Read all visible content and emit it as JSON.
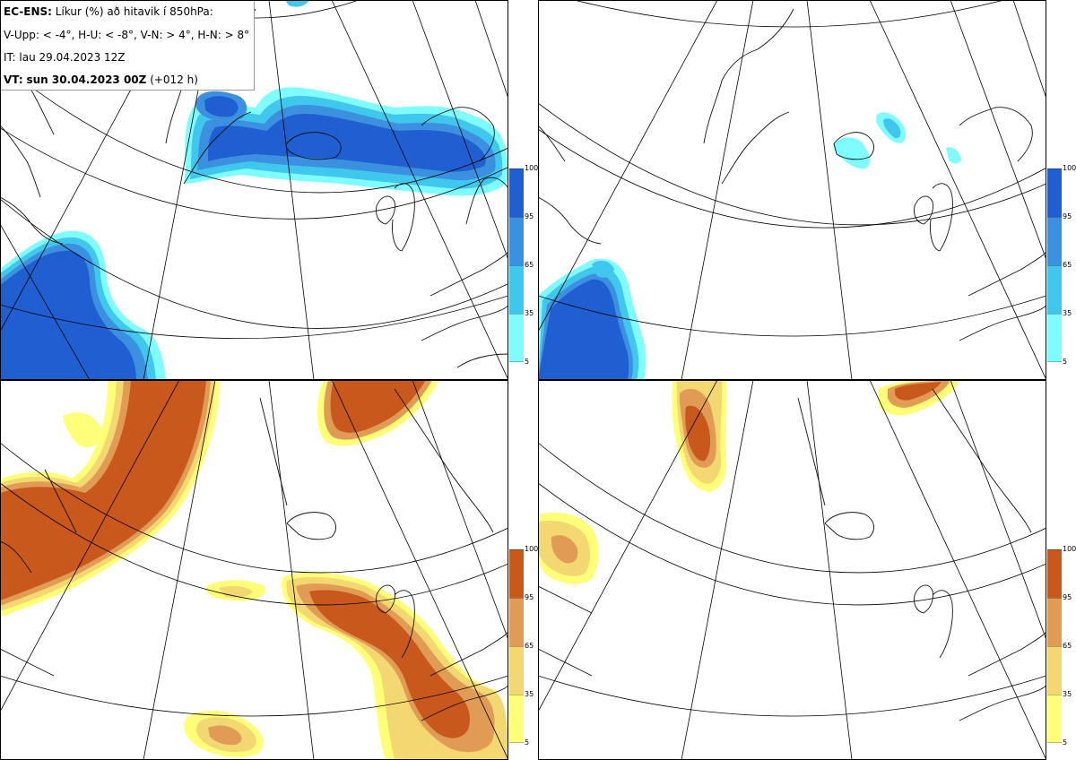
{
  "info": {
    "product": "EC-ENS:",
    "title": "Líkur (%) að hitavik í 850hPa:",
    "criteria": "V-Upp: < -4°, H-U: < -8°, V-N: > 4°, H-N: > 8°",
    "init_time": "IT: lau 29.04.2023 12Z",
    "valid_label": "VT:",
    "valid_time": "sun 30.04.2023 00Z",
    "lead": "(+012 h)"
  },
  "panels": {
    "tl": {
      "criterion": "V-Upp: < -4°",
      "colorscale": "blue"
    },
    "tr": {
      "criterion": "H-U: < -8°",
      "colorscale": "blue"
    },
    "bl": {
      "criterion": "V-N: > 4°",
      "colorscale": "orange"
    },
    "br": {
      "criterion": "H-N: > 8°",
      "colorscale": "orange"
    }
  },
  "legend_ticks": [
    "100",
    "95",
    "65",
    "35",
    "5"
  ],
  "colors": {
    "blue": [
      "#7ffcff",
      "#3fc7ee",
      "#3c90e0",
      "#1f5fd1"
    ],
    "orange": [
      "#ffff78",
      "#f3d771",
      "#e09c55",
      "#c8581c"
    ],
    "coast": "#111111",
    "grid": "#000000"
  }
}
